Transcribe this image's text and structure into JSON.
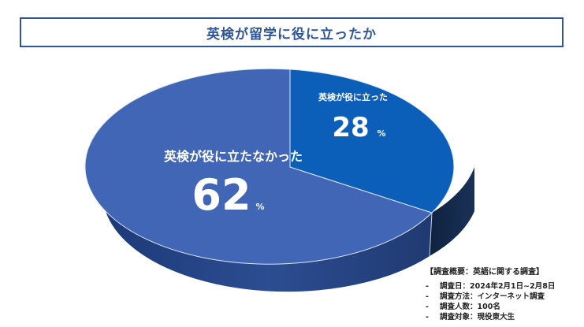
{
  "title": "英検が留学に役に立ったか",
  "chart_data": {
    "type": "pie",
    "style": "3d",
    "slices": [
      {
        "label": "英検が役に立った",
        "value": 28,
        "unit": "%",
        "color": "#0b5fb7"
      },
      {
        "label": "英検が役に立たなかった",
        "value": 62,
        "unit": "%",
        "color": "#3f66b4"
      }
    ]
  },
  "survey": {
    "heading": "【調査概要：英語に関する調査】",
    "bullet": "-",
    "items": [
      "調査日：2024年2月1日~2月8日",
      "調査方法：インターネット調査",
      "調査人数：100名",
      "調査対象：現役東大生"
    ]
  }
}
